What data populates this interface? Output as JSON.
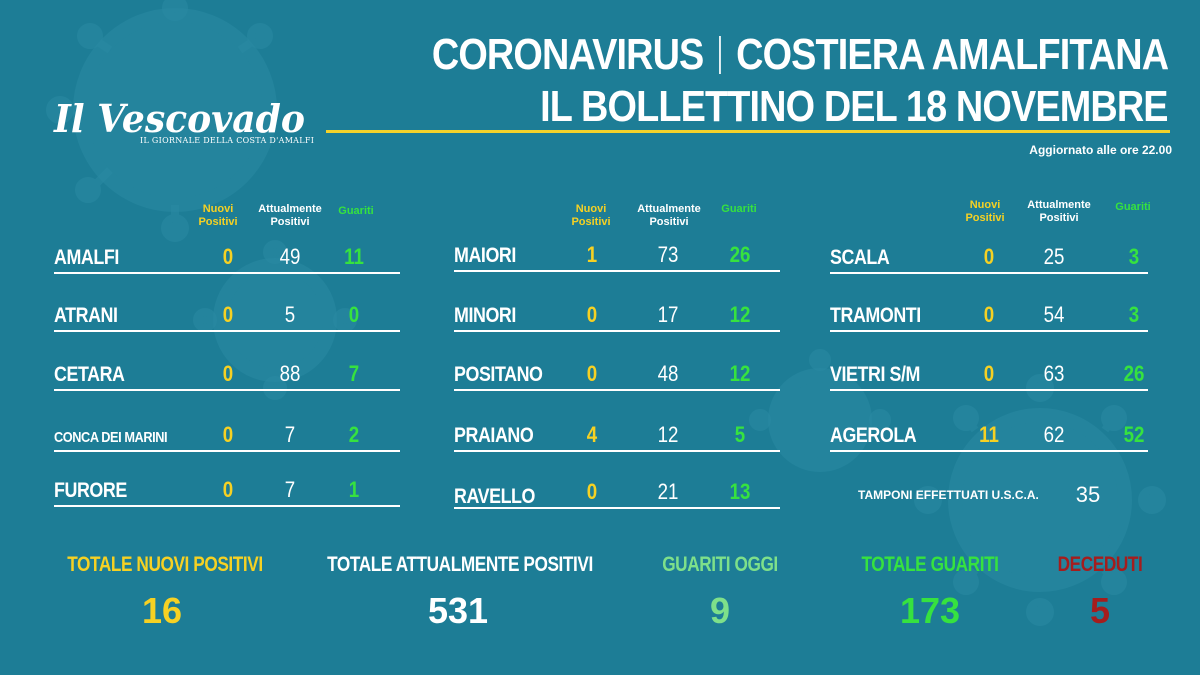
{
  "header": {
    "title_left": "CORONAVIRUS",
    "title_right": "COSTIERA AMALFITANA",
    "subtitle": "IL BOLLETTINO DEL 18 NOVEMBRE",
    "updated": "Aggiornato alle ore 22.00"
  },
  "logo": {
    "name": "Il Vescovado",
    "tagline": "IL GIORNALE DELLA COSTA D'AMALFI"
  },
  "columns": {
    "nuovi_1": "Nuovi",
    "nuovi_2": "Positivi",
    "attual_1": "Attualmente",
    "attual_2": "Positivi",
    "guariti": "Guariti"
  },
  "towns": {
    "amalfi": {
      "name": "AMALFI",
      "nuovi": "0",
      "attuali": "49",
      "guariti": "11"
    },
    "atrani": {
      "name": "ATRANI",
      "nuovi": "0",
      "attuali": "5",
      "guariti": "0"
    },
    "cetara": {
      "name": "CETARA",
      "nuovi": "0",
      "attuali": "88",
      "guariti": "7"
    },
    "conca": {
      "name": "CONCA DEI MARINI",
      "nuovi": "0",
      "attuali": "7",
      "guariti": "2"
    },
    "furore": {
      "name": "FURORE",
      "nuovi": "0",
      "attuali": "7",
      "guariti": "1"
    },
    "maiori": {
      "name": "MAIORI",
      "nuovi": "1",
      "attuali": "73",
      "guariti": "26"
    },
    "minori": {
      "name": "MINORI",
      "nuovi": "0",
      "attuali": "17",
      "guariti": "12"
    },
    "positano": {
      "name": "POSITANO",
      "nuovi": "0",
      "attuali": "48",
      "guariti": "12"
    },
    "praiano": {
      "name": "PRAIANO",
      "nuovi": "4",
      "attuali": "12",
      "guariti": "5"
    },
    "ravello": {
      "name": "RAVELLO",
      "nuovi": "0",
      "attuali": "21",
      "guariti": "13"
    },
    "scala": {
      "name": "SCALA",
      "nuovi": "0",
      "attuali": "25",
      "guariti": "3"
    },
    "tramonti": {
      "name": "TRAMONTI",
      "nuovi": "0",
      "attuali": "54",
      "guariti": "3"
    },
    "vietri": {
      "name": "VIETRI S/M",
      "nuovi": "0",
      "attuali": "63",
      "guariti": "26"
    },
    "agerola": {
      "name": "AGEROLA",
      "nuovi": "11",
      "attuali": "62",
      "guariti": "52"
    }
  },
  "tamponi": {
    "label": "TAMPONI  EFFETTUATI U.S.C.A.",
    "value": "35"
  },
  "totals": {
    "nuovi_label": "TOTALE NUOVI POSITIVI",
    "nuovi_value": "16",
    "attuali_label": "TOTALE ATTUALMENTE POSITIVI",
    "attuali_value": "531",
    "guariti_oggi_label": "GUARITI OGGI",
    "guariti_oggi_value": "9",
    "guariti_tot_label": "TOTALE GUARITI",
    "guariti_tot_value": "173",
    "deceduti_label": "DECEDUTI",
    "deceduti_value": "5"
  },
  "colors": {
    "background": "#1d7d96",
    "accent_yellow": "#f6d123",
    "accent_green": "#36e23f",
    "light_green": "#7ee08a",
    "dark_red": "#a51d1d"
  }
}
